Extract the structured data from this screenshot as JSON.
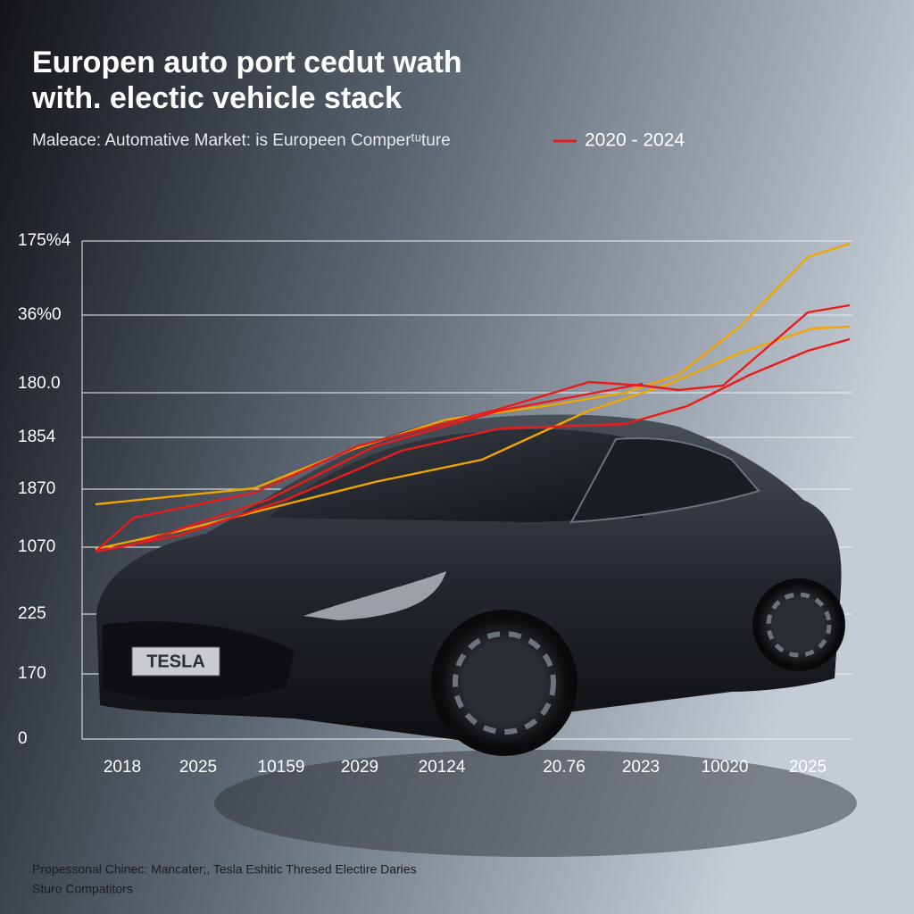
{
  "header": {
    "title_lines": [
      "Europen auto port cedut wath",
      "with. electic vehicle stack"
    ],
    "subtitle": "Maleace: Automative Market: is Europeen Comperᵗᵘture",
    "legend": "2020 - 2024"
  },
  "axis": {
    "y_labels": [
      "175%4",
      "36%0",
      "180.0",
      "1854",
      "1870",
      "1070",
      "225",
      "170",
      "0"
    ],
    "x_labels": [
      "2018",
      "2025",
      "10159",
      "2029",
      "20124",
      "20.76",
      "2023",
      "10020",
      "2025"
    ]
  },
  "car": {
    "plate": "TESLA"
  },
  "footer": {
    "lines": [
      "Propessonal Chinec: Mancater;, Tesla Eshitic Thresed Electire Daries",
      "Sturo Compatitors"
    ]
  }
}
